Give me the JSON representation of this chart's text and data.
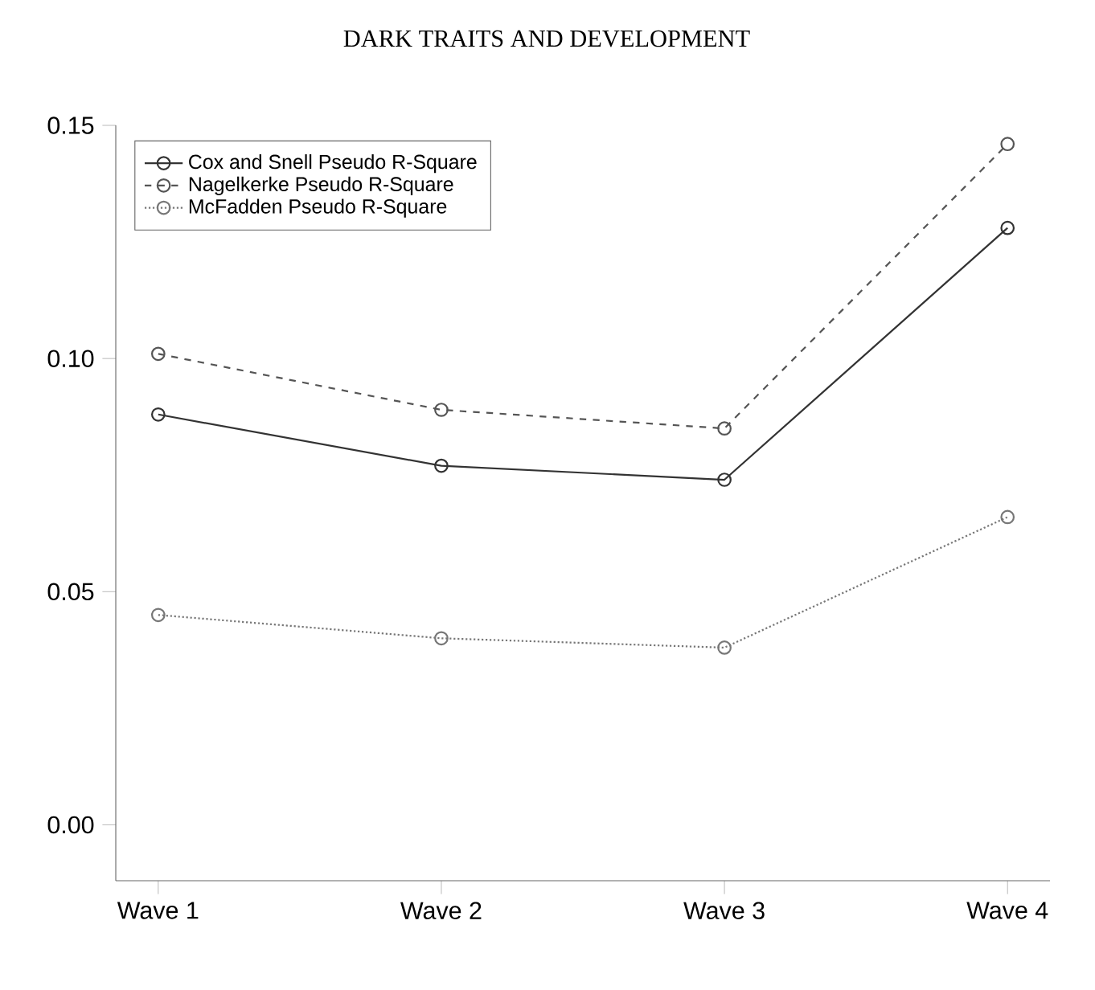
{
  "chart_data": {
    "type": "line",
    "title": "DARK TRAITS AND DEVELOPMENT",
    "categories": [
      "Wave 1",
      "Wave 2",
      "Wave 3",
      "Wave 4"
    ],
    "series": [
      {
        "name": "Cox and Snell Pseudo R-Square",
        "color": "#333333",
        "line_style": "solid",
        "values": [
          0.088,
          0.077,
          0.074,
          0.128
        ]
      },
      {
        "name": "Nagelkerke Pseudo R-Square",
        "color": "#555555",
        "line_style": "dashed",
        "values": [
          0.101,
          0.089,
          0.085,
          0.146
        ]
      },
      {
        "name": "McFadden Pseudo R-Square",
        "color": "#777777",
        "line_style": "dotted",
        "values": [
          0.045,
          0.04,
          0.038,
          0.066
        ]
      }
    ],
    "ylim": [
      -0.012,
      0.15
    ],
    "yticks": [
      {
        "value": 0,
        "label": "0.00"
      },
      {
        "value": 0.05,
        "label": "0.05"
      },
      {
        "value": 0.1,
        "label": "0.10"
      },
      {
        "value": 0.15,
        "label": "0.15"
      }
    ],
    "marker": "circle",
    "grid": false,
    "legend": "top left"
  }
}
